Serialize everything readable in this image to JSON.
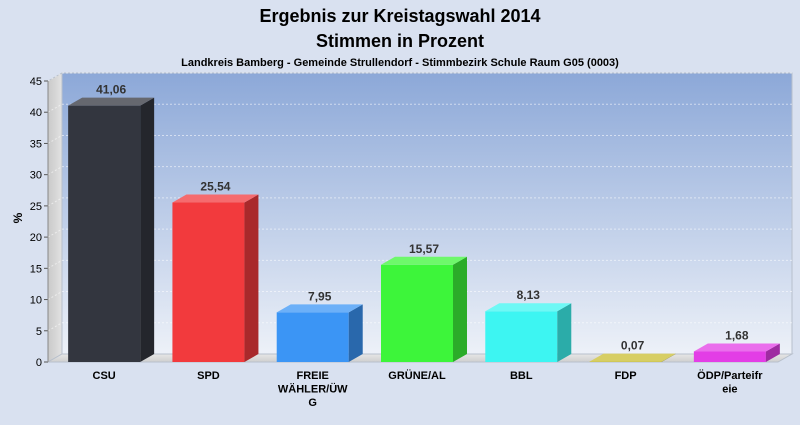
{
  "chart_data": {
    "type": "bar",
    "title": "Ergebnis zur Kreistagswahl 2014",
    "title2": "Stimmen in Prozent",
    "subtitle": "Landkreis Bamberg - Gemeinde Strullendorf - Stimmbezirk Schule Raum G05 (0003)",
    "ylabel": "%",
    "xlabel": "",
    "ylim": [
      0,
      45
    ],
    "yticks": [
      0,
      5,
      10,
      15,
      20,
      25,
      30,
      35,
      40,
      45
    ],
    "grid": true,
    "categories": [
      "CSU",
      "SPD",
      "FREIE WÄHLER/ÜWG",
      "GRÜNE/AL",
      "BBL",
      "FDP",
      "ÖDP/Parteifreie"
    ],
    "category_label_lines": [
      [
        "CSU"
      ],
      [
        "SPD"
      ],
      [
        "FREIE",
        "WÄHLER/ÜW",
        "G"
      ],
      [
        "GRÜNE/AL"
      ],
      [
        "BBL"
      ],
      [
        "FDP"
      ],
      [
        "ÖDP/Parteifr",
        "eie"
      ]
    ],
    "values": [
      41.06,
      25.54,
      7.95,
      15.57,
      8.13,
      0.07,
      1.68
    ],
    "value_labels": [
      "41,06",
      "25,54",
      "7,95",
      "15,57",
      "8,13",
      "0,07",
      "1,68"
    ],
    "colors": [
      "#33363f",
      "#f23a3d",
      "#3b95f5",
      "#3df53a",
      "#3df5f2",
      "#c9be30",
      "#e33de6"
    ],
    "background_color": "#d9e1f0",
    "plot_gradient": [
      "#8ca8d8",
      "#edf1f8"
    ]
  }
}
